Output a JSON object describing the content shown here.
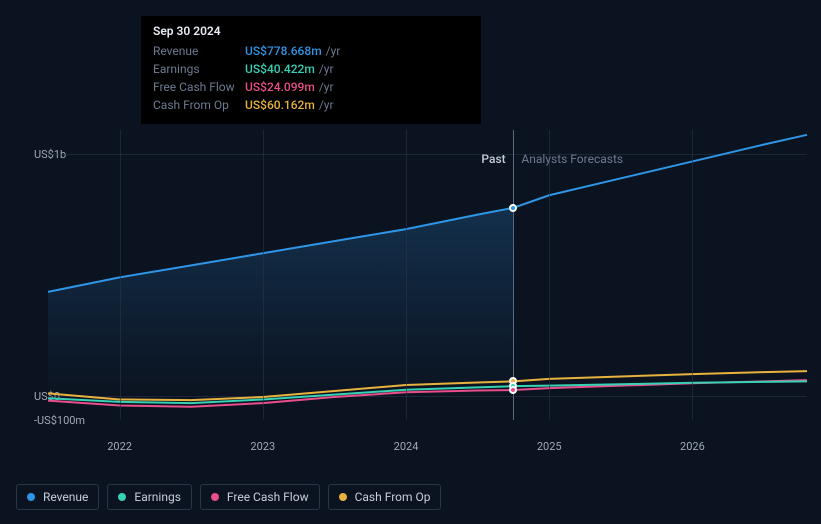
{
  "tooltip": {
    "date": "Sep 30 2024",
    "rows": [
      {
        "label": "Revenue",
        "value": "US$778.668m",
        "suffix": "/yr",
        "color": "#2f95e6"
      },
      {
        "label": "Earnings",
        "value": "US$40.422m",
        "suffix": "/yr",
        "color": "#37d1b6"
      },
      {
        "label": "Free Cash Flow",
        "value": "US$24.099m",
        "suffix": "/yr",
        "color": "#e84f8a"
      },
      {
        "label": "Cash From Op",
        "value": "US$60.162m",
        "suffix": "/yr",
        "color": "#e8b23f"
      }
    ]
  },
  "chart": {
    "type": "line",
    "background_color": "#0b1320",
    "grid_color": "#2a3447",
    "label_color": "#a0a8b8",
    "label_fontsize": 11,
    "y_axis": {
      "ticks": [
        -100,
        0,
        1000
      ],
      "tick_labels": [
        "-US$100m",
        "US$0",
        "US$1b"
      ],
      "ymin": -100,
      "ymax": 1100
    },
    "x_axis": {
      "ticks": [
        2022,
        2023,
        2024,
        2025,
        2026
      ],
      "xmin": 2021.5,
      "xmax": 2026.8
    },
    "divider_x": 2024.75,
    "past_label": "Past",
    "forecast_label": "Analysts Forecasts",
    "hover_x": 2024.75,
    "series": [
      {
        "name": "Revenue",
        "color": "#2f95e6",
        "line_width": 2,
        "fill_gradient": true,
        "data": [
          [
            2021.5,
            430
          ],
          [
            2022,
            490
          ],
          [
            2022.5,
            540
          ],
          [
            2023,
            590
          ],
          [
            2023.5,
            640
          ],
          [
            2024,
            690
          ],
          [
            2024.5,
            750
          ],
          [
            2024.75,
            778
          ],
          [
            2025,
            830
          ],
          [
            2025.5,
            900
          ],
          [
            2026,
            970
          ],
          [
            2026.5,
            1040
          ],
          [
            2026.8,
            1080
          ]
        ]
      },
      {
        "name": "Cash From Op",
        "color": "#e8b23f",
        "line_width": 2,
        "data": [
          [
            2021.5,
            10
          ],
          [
            2022,
            -15
          ],
          [
            2022.5,
            -18
          ],
          [
            2023,
            -5
          ],
          [
            2023.5,
            20
          ],
          [
            2024,
            45
          ],
          [
            2024.5,
            55
          ],
          [
            2024.75,
            60
          ],
          [
            2025,
            70
          ],
          [
            2025.5,
            80
          ],
          [
            2026,
            90
          ],
          [
            2026.5,
            98
          ],
          [
            2026.8,
            102
          ]
        ]
      },
      {
        "name": "Free Cash Flow",
        "color": "#e84f8a",
        "line_width": 2,
        "data": [
          [
            2021.5,
            -20
          ],
          [
            2022,
            -40
          ],
          [
            2022.5,
            -45
          ],
          [
            2023,
            -30
          ],
          [
            2023.5,
            -5
          ],
          [
            2024,
            15
          ],
          [
            2024.5,
            22
          ],
          [
            2024.75,
            24
          ],
          [
            2025,
            32
          ],
          [
            2025.5,
            42
          ],
          [
            2026,
            52
          ],
          [
            2026.5,
            60
          ],
          [
            2026.8,
            65
          ]
        ]
      },
      {
        "name": "Earnings",
        "color": "#37d1b6",
        "line_width": 2,
        "data": [
          [
            2021.5,
            -10
          ],
          [
            2022,
            -25
          ],
          [
            2022.5,
            -30
          ],
          [
            2023,
            -15
          ],
          [
            2023.5,
            5
          ],
          [
            2024,
            25
          ],
          [
            2024.5,
            35
          ],
          [
            2024.75,
            40
          ],
          [
            2025,
            42
          ],
          [
            2025.5,
            48
          ],
          [
            2026,
            54
          ],
          [
            2026.5,
            58
          ],
          [
            2026.8,
            60
          ]
        ]
      }
    ],
    "hover_points": [
      {
        "series": "Revenue",
        "y": 778,
        "color": "#2f95e6"
      },
      {
        "series": "Cash From Op",
        "y": 60,
        "color": "#e8b23f"
      },
      {
        "series": "Earnings",
        "y": 40,
        "color": "#37d1b6"
      },
      {
        "series": "Free Cash Flow",
        "y": 24,
        "color": "#e84f8a"
      }
    ]
  },
  "legend": [
    {
      "label": "Revenue",
      "color": "#2f95e6"
    },
    {
      "label": "Earnings",
      "color": "#37d1b6"
    },
    {
      "label": "Free Cash Flow",
      "color": "#e84f8a"
    },
    {
      "label": "Cash From Op",
      "color": "#e8b23f"
    }
  ]
}
